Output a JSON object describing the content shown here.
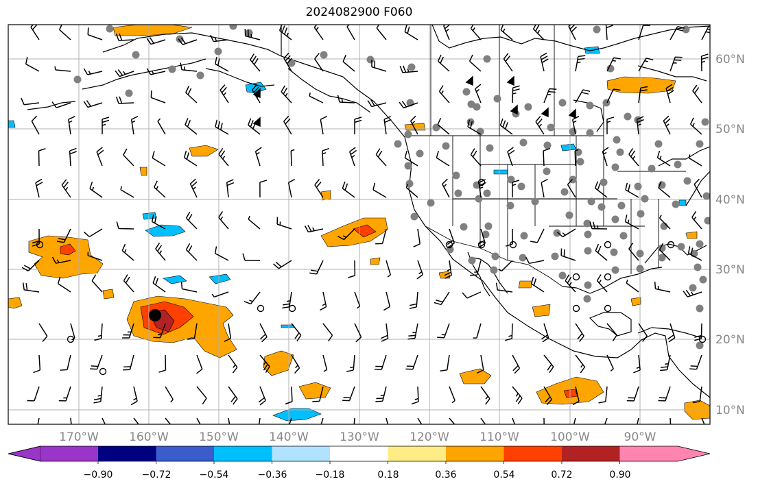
{
  "title": "2024082900 F060",
  "lon_labels": [
    "170°W",
    "160°W",
    "150°W",
    "140°W",
    "130°W",
    "120°W",
    "110°W",
    "100°W",
    "90°W"
  ],
  "lat_labels": [
    "60°N",
    "50°N",
    "40°N",
    "30°N",
    "20°N",
    "10°N"
  ],
  "colorbar": {
    "ticks": [
      "−0.90",
      "−0.72",
      "−0.54",
      "−0.36",
      "−0.18",
      "0.18",
      "0.36",
      "0.54",
      "0.72",
      "0.90"
    ],
    "colors": [
      "#9a35c9",
      "#000080",
      "#3a5ccc",
      "#00bfff",
      "#b0e3ff",
      "#ffffff",
      "#ffec85",
      "#ffa500",
      "#ff4000",
      "#b22222",
      "#ff85b0"
    ]
  },
  "shading_colors": {
    "light_orange": "#ffa500",
    "red_orange": "#ff4000",
    "dark_red": "#b22222",
    "light_blue": "#00bfff",
    "pale_yellow": "#ffec85"
  }
}
